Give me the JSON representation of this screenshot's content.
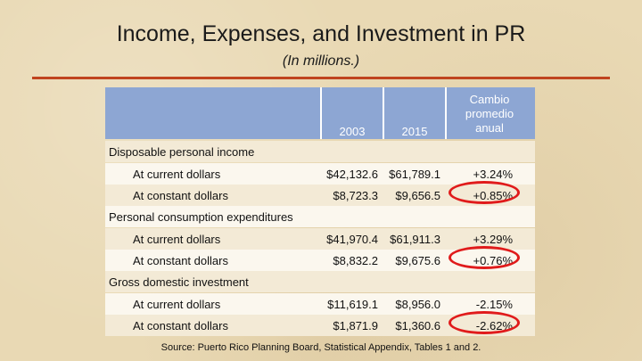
{
  "title": "Income, Expenses, and Investment in PR",
  "subtitle": "(In millions.)",
  "headers": {
    "col1": "2003",
    "col2": "2015",
    "col3": "Cambio promedio anual"
  },
  "sections": [
    {
      "label": "Disposable personal income",
      "rows": [
        {
          "label": "At current dollars",
          "v2003": "$42,132.6",
          "v2015": "$61,789.1",
          "change": "+3.24%"
        },
        {
          "label": "At constant dollars",
          "v2003": "$8,723.3",
          "v2015": "$9,656.5",
          "change": "+0.85%"
        }
      ]
    },
    {
      "label": "Personal consumption expenditures",
      "rows": [
        {
          "label": "At current dollars",
          "v2003": "$41,970.4",
          "v2015": "$61,911.3",
          "change": "+3.29%"
        },
        {
          "label": "At constant dollars",
          "v2003": "$8,832.2",
          "v2015": "$9,675.6",
          "change": "+0.76%"
        }
      ]
    },
    {
      "label": "Gross domestic investment",
      "rows": [
        {
          "label": "At current dollars",
          "v2003": "$11,619.1",
          "v2015": "$8,956.0",
          "change": "-2.15%"
        },
        {
          "label": "At constant dollars",
          "v2003": "$1,871.9",
          "v2015": "$1,360.6",
          "change": "-2.62%"
        }
      ]
    }
  ],
  "source": "Source: Puerto Rico Planning Board, Statistical Appendix, Tables 1 and 2.",
  "colors": {
    "header": "#8da6d3",
    "rule": "#c0441f",
    "highlight": "#e01b1b"
  }
}
